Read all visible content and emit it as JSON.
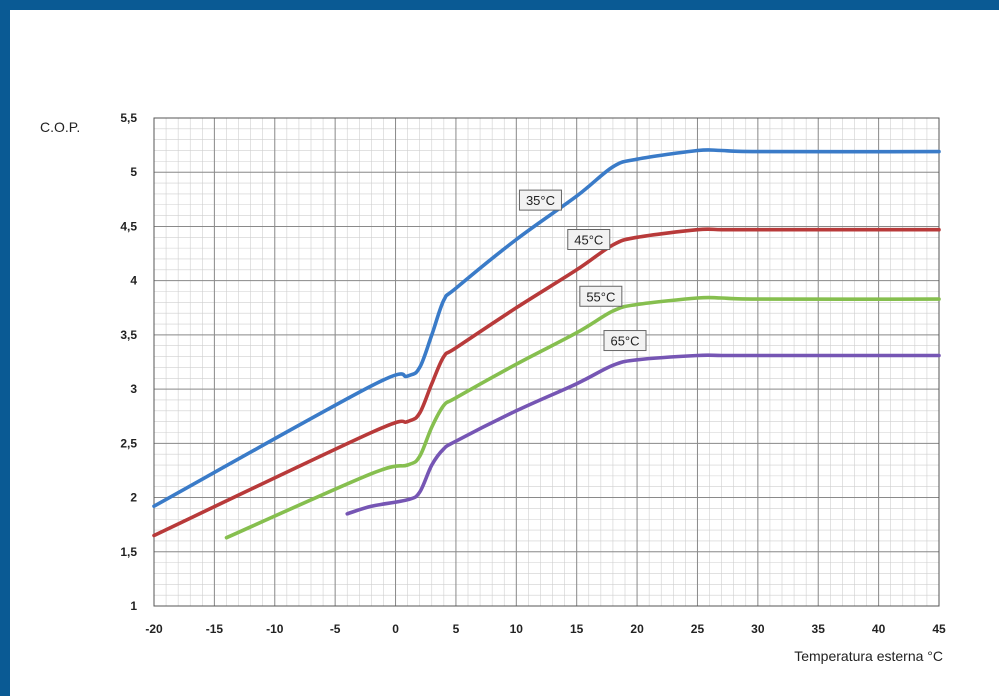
{
  "chart_data": {
    "type": "line",
    "title": "",
    "ylabel": "C.O.P.",
    "xlabel": "Temperatura esterna °C",
    "xlim": [
      -20,
      45
    ],
    "ylim": [
      1,
      5.5
    ],
    "x_ticks": [
      -20,
      -15,
      -10,
      -5,
      0,
      5,
      10,
      15,
      20,
      25,
      30,
      35,
      40,
      45
    ],
    "x_tick_labels": [
      "-20",
      "-15",
      "-10",
      "-5",
      "0",
      "5",
      "10",
      "15",
      "20",
      "25",
      "30",
      "35",
      "40",
      "45"
    ],
    "y_ticks": [
      1,
      1.5,
      2,
      2.5,
      3,
      3.5,
      4,
      4.5,
      5,
      5.5
    ],
    "y_tick_labels": [
      "1",
      "1,5",
      "2",
      "2,5",
      "3",
      "3,5",
      "4",
      "4,5",
      "5",
      "5,5"
    ],
    "grid": true,
    "series": [
      {
        "name": "35°C",
        "color": "#3a7bc8",
        "x": [
          -20,
          -2,
          1,
          2,
          3,
          4,
          5,
          10,
          15,
          18,
          20,
          25,
          27,
          30,
          45
        ],
        "y": [
          1.92,
          3.03,
          3.12,
          3.2,
          3.5,
          3.82,
          3.93,
          4.38,
          4.78,
          5.05,
          5.12,
          5.2,
          5.2,
          5.19,
          5.19
        ]
      },
      {
        "name": "45°C",
        "color": "#b83a3a",
        "x": [
          -20,
          -2,
          1,
          2,
          3,
          4,
          5,
          10,
          15,
          18,
          20,
          25,
          27,
          30,
          45
        ],
        "y": [
          1.65,
          2.6,
          2.7,
          2.78,
          3.05,
          3.3,
          3.38,
          3.75,
          4.1,
          4.33,
          4.4,
          4.47,
          4.47,
          4.47,
          4.47
        ]
      },
      {
        "name": "55°C",
        "color": "#86bf4f",
        "x": [
          -14,
          -2,
          1,
          2,
          3,
          4,
          5,
          10,
          15,
          18,
          20,
          25,
          27,
          30,
          45
        ],
        "y": [
          1.63,
          2.22,
          2.3,
          2.38,
          2.65,
          2.85,
          2.92,
          3.23,
          3.52,
          3.72,
          3.78,
          3.84,
          3.84,
          3.83,
          3.83
        ]
      },
      {
        "name": "65°C",
        "color": "#7656b4",
        "x": [
          -4,
          -2,
          1,
          2,
          3,
          4,
          5,
          10,
          15,
          18,
          20,
          25,
          27,
          30,
          45
        ],
        "y": [
          1.85,
          1.92,
          1.98,
          2.05,
          2.3,
          2.45,
          2.52,
          2.8,
          3.05,
          3.22,
          3.27,
          3.31,
          3.31,
          3.31,
          3.31
        ]
      }
    ]
  }
}
